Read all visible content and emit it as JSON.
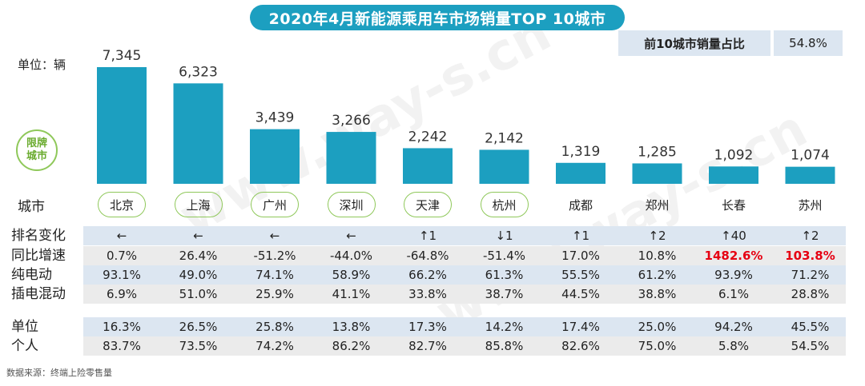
{
  "title": "2020年4月新能源乘用车市场销量TOP 10城市",
  "share": {
    "label": "前10城市销量占比",
    "value": "54.8%"
  },
  "unit_label": "单位：辆",
  "badge": {
    "line1": "限牌",
    "line2": "城市"
  },
  "city_axis_label": "城市",
  "source": "数据来源：终端上险零售量",
  "watermark": "www.way-s.cn",
  "colors": {
    "bar": "#1c9fc0",
    "title_bg": "#1c9fc0",
    "highlight": "#e60012",
    "badge": "#8fc85a"
  },
  "chart_data": {
    "type": "bar",
    "categories": [
      "北京",
      "上海",
      "广州",
      "深圳",
      "天津",
      "杭州",
      "成都",
      "郑州",
      "长春",
      "苏州"
    ],
    "values": [
      7345,
      6323,
      3439,
      3266,
      2242,
      2142,
      1319,
      1285,
      1092,
      1074
    ],
    "value_labels": [
      "7,345",
      "6,323",
      "3,439",
      "3,266",
      "2,242",
      "2,142",
      "1,319",
      "1,285",
      "1,092",
      "1,074"
    ],
    "restricted": [
      true,
      true,
      true,
      true,
      true,
      true,
      false,
      false,
      false,
      false
    ],
    "ylim": [
      0,
      7345
    ]
  },
  "table": {
    "rows": [
      {
        "label": "排名变化",
        "band": "blue",
        "values": [
          "←",
          "←",
          "←",
          "←",
          "↑1",
          "↓1",
          "↑1",
          "↑2",
          "↑40",
          "↑2"
        ],
        "highlight": []
      },
      {
        "label": "同比增速",
        "band": "grey",
        "values": [
          "0.7%",
          "26.4%",
          "-51.2%",
          "-44.0%",
          "-64.8%",
          "-51.4%",
          "17.0%",
          "10.8%",
          "1482.6%",
          "103.8%"
        ],
        "highlight": [
          8,
          9
        ]
      },
      {
        "label": "纯电动",
        "band": "blue",
        "values": [
          "93.1%",
          "49.0%",
          "74.1%",
          "58.9%",
          "66.2%",
          "61.3%",
          "55.5%",
          "61.2%",
          "93.9%",
          "71.2%"
        ],
        "highlight": []
      },
      {
        "label": "插电混动",
        "band": "grey",
        "values": [
          "6.9%",
          "51.0%",
          "25.9%",
          "41.1%",
          "33.8%",
          "38.7%",
          "44.5%",
          "38.8%",
          "6.1%",
          "28.8%"
        ],
        "highlight": []
      },
      {
        "label": "单位",
        "band": "blue",
        "values": [
          "16.3%",
          "26.5%",
          "25.8%",
          "13.8%",
          "17.3%",
          "14.2%",
          "17.4%",
          "25.0%",
          "94.2%",
          "45.5%"
        ],
        "highlight": []
      },
      {
        "label": "个人",
        "band": "grey",
        "values": [
          "83.7%",
          "73.5%",
          "74.2%",
          "86.2%",
          "82.7%",
          "85.8%",
          "82.6%",
          "75.0%",
          "5.8%",
          "54.5%"
        ],
        "highlight": []
      }
    ]
  }
}
